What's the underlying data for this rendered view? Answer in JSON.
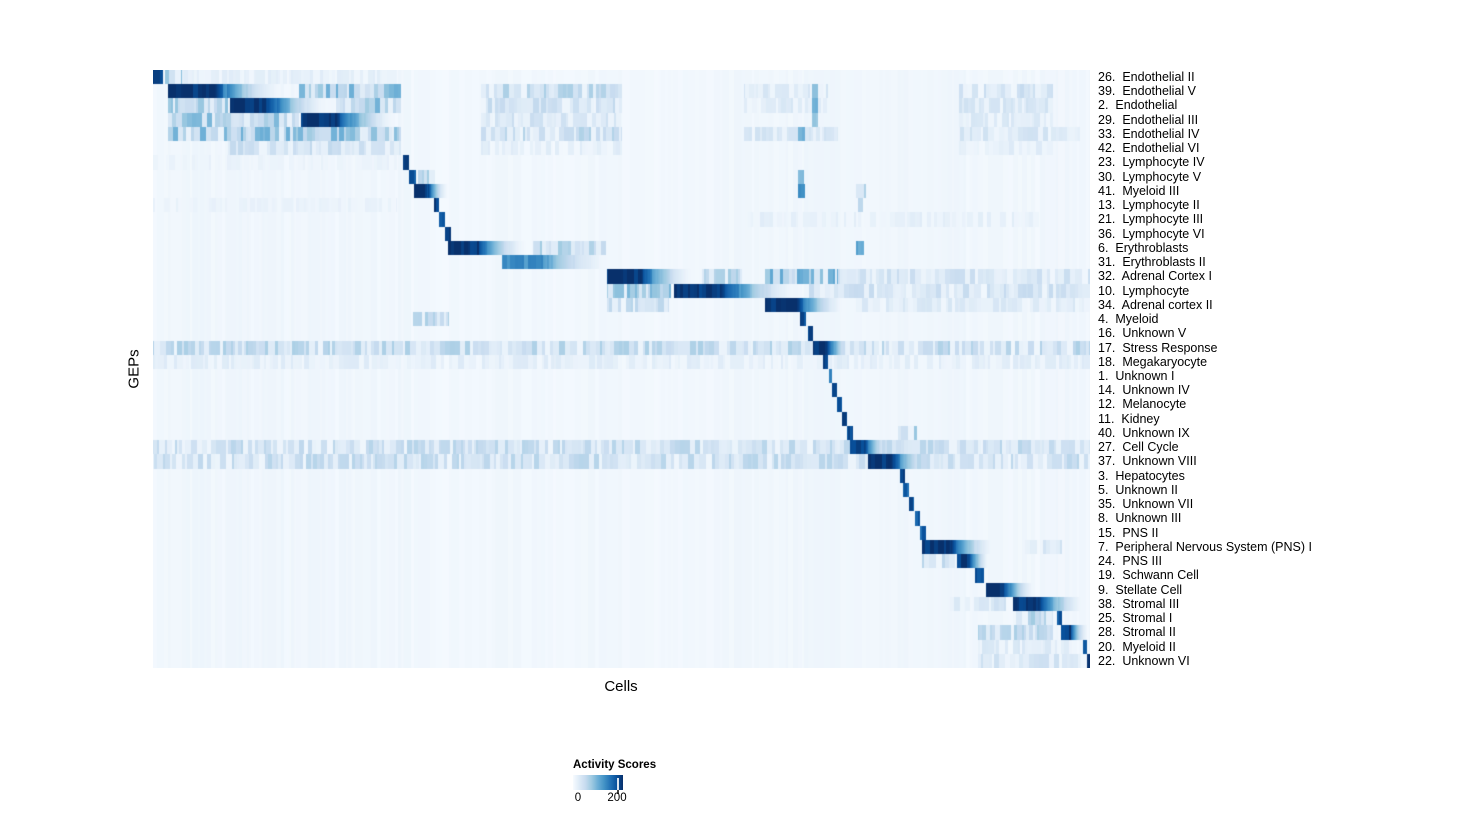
{
  "figure": {
    "xlabel": "Cells",
    "ylabel": "GEPs"
  },
  "colors": {
    "page_background": "#ffffff",
    "heatmap_low": "#f7fbff",
    "heatmap_high": "#08306b"
  },
  "chart_data": {
    "type": "heatmap",
    "title": "",
    "xlabel": "Cells",
    "ylabel": "GEPs",
    "x_axis_tick_labels": [],
    "colormap": "Blues",
    "colormap_stops": [
      [
        247,
        251,
        255
      ],
      [
        222,
        235,
        247
      ],
      [
        198,
        219,
        239
      ],
      [
        158,
        202,
        225
      ],
      [
        107,
        174,
        214
      ],
      [
        66,
        146,
        198
      ],
      [
        33,
        113,
        181
      ],
      [
        8,
        81,
        156
      ],
      [
        8,
        48,
        107
      ]
    ],
    "legend": {
      "title": "Activity Scores",
      "ticks": [
        {
          "value": 0,
          "label": "0",
          "pos": 0.1
        },
        {
          "value": 200,
          "label": "200",
          "pos": 0.88
        }
      ]
    },
    "rows": [
      "26.  Endothelial II",
      "39.  Endothelial V",
      "2.  Endothelial",
      "29.  Endothelial III",
      "33.  Endothelial IV",
      "42.  Endothelial VI",
      "23.  Lymphocyte IV",
      "30.  Lymphocyte V",
      "41.  Myeloid III",
      "13.  Lymphocyte II",
      "21.  Lymphocyte III",
      "36.  Lymphocyte VI",
      "6.  Erythroblasts",
      "31.  Erythroblasts II",
      "32.  Adrenal Cortex I",
      "10.  Lymphocyte",
      "34.  Adrenal cortex II",
      "4.  Myeloid",
      "16.  Unknown V",
      "17.  Stress Response",
      "18.  Megakaryocyte",
      "1.  Unknown I",
      "14.  Unknown IV",
      "12.  Melanocyte",
      "11.  Kidney",
      "40.  Unknown IX",
      "27.  Cell Cycle",
      "37.  Unknown VIII",
      "3.  Hepatocytes",
      "5.  Unknown II",
      "35.  Unknown VII",
      "8.  Unknown III",
      "15.  PNS II",
      "7.  Peripheral Nervous System (PNS) I",
      "24.  PNS III",
      "19.  Schwann Cell",
      "9.  Stellate Cell",
      "38.  Stromal III",
      "25.  Stromal I",
      "28.  Stromal II",
      "20.  Myeloid II",
      "22.  Unknown VI"
    ],
    "background_bands": [
      [
        0.015,
        0.264,
        0.03
      ],
      [
        0.35,
        0.5,
        0.02
      ],
      [
        0.505,
        0.56,
        0.02
      ],
      [
        0.63,
        0.87,
        0.03
      ],
      [
        0.917,
        1.0,
        0.03
      ]
    ],
    "blocks": [
      [
        0,
        0.0,
        0.01,
        0.95,
        "s"
      ],
      [
        0,
        0.012,
        0.03,
        0.3,
        "n"
      ],
      [
        0,
        0.03,
        0.26,
        0.07,
        "n"
      ],
      [
        1,
        0.015,
        0.15,
        1.0,
        "f"
      ],
      [
        1,
        0.155,
        0.264,
        0.3,
        "n"
      ],
      [
        1,
        0.35,
        0.5,
        0.2,
        "n"
      ],
      [
        1,
        0.63,
        0.72,
        0.12,
        "n"
      ],
      [
        1,
        0.703,
        0.709,
        0.45,
        "s"
      ],
      [
        1,
        0.86,
        0.96,
        0.15,
        "n"
      ],
      [
        2,
        0.015,
        0.08,
        0.25,
        "n"
      ],
      [
        2,
        0.082,
        0.195,
        1.0,
        "f"
      ],
      [
        2,
        0.195,
        0.264,
        0.3,
        "n"
      ],
      [
        2,
        0.35,
        0.5,
        0.16,
        "n"
      ],
      [
        2,
        0.63,
        0.72,
        0.1,
        "n"
      ],
      [
        2,
        0.703,
        0.709,
        0.5,
        "s"
      ],
      [
        2,
        0.86,
        0.96,
        0.12,
        "n"
      ],
      [
        3,
        0.015,
        0.155,
        0.28,
        "n"
      ],
      [
        3,
        0.157,
        0.268,
        1.0,
        "f"
      ],
      [
        3,
        0.35,
        0.5,
        0.14,
        "n"
      ],
      [
        3,
        0.703,
        0.709,
        0.4,
        "s"
      ],
      [
        3,
        0.86,
        0.96,
        0.1,
        "n"
      ],
      [
        4,
        0.015,
        0.264,
        0.3,
        "n"
      ],
      [
        4,
        0.35,
        0.5,
        0.2,
        "n"
      ],
      [
        4,
        0.63,
        0.73,
        0.12,
        "n"
      ],
      [
        4,
        0.688,
        0.695,
        0.5,
        "s"
      ],
      [
        4,
        0.86,
        0.99,
        0.12,
        "n"
      ],
      [
        5,
        0.08,
        0.264,
        0.16,
        "n"
      ],
      [
        5,
        0.35,
        0.5,
        0.08,
        "n"
      ],
      [
        5,
        0.86,
        0.96,
        0.08,
        "n"
      ],
      [
        6,
        0.0,
        0.26,
        0.05,
        "n"
      ],
      [
        6,
        0.2665,
        0.2725,
        0.9,
        "s"
      ],
      [
        7,
        0.2725,
        0.2805,
        0.85,
        "s"
      ],
      [
        7,
        0.282,
        0.3,
        0.25,
        "n"
      ],
      [
        7,
        0.688,
        0.694,
        0.45,
        "s"
      ],
      [
        8,
        0.2775,
        0.318,
        1.0,
        "f"
      ],
      [
        8,
        0.688,
        0.695,
        0.6,
        "s"
      ],
      [
        8,
        0.75,
        0.76,
        0.2,
        "n"
      ],
      [
        9,
        0.0,
        0.26,
        0.05,
        "n"
      ],
      [
        9,
        0.299,
        0.305,
        0.9,
        "s"
      ],
      [
        9,
        0.752,
        0.757,
        0.3,
        "s"
      ],
      [
        10,
        0.305,
        0.311,
        0.85,
        "s"
      ],
      [
        10,
        0.63,
        0.95,
        0.07,
        "n"
      ],
      [
        11,
        0.311,
        0.3175,
        0.9,
        "s"
      ],
      [
        12,
        0.314,
        0.405,
        1.0,
        "f"
      ],
      [
        12,
        0.405,
        0.483,
        0.22,
        "n"
      ],
      [
        12,
        0.75,
        0.758,
        0.55,
        "s"
      ],
      [
        13,
        0.372,
        0.5,
        0.62,
        "f"
      ],
      [
        14,
        0.484,
        0.585,
        1.0,
        "f"
      ],
      [
        14,
        0.585,
        0.628,
        0.22,
        "n"
      ],
      [
        14,
        0.653,
        0.73,
        0.32,
        "n"
      ],
      [
        14,
        0.73,
        1.0,
        0.14,
        "n"
      ],
      [
        15,
        0.484,
        0.552,
        0.28,
        "n"
      ],
      [
        15,
        0.555,
        0.7,
        1.0,
        "f"
      ],
      [
        15,
        0.7,
        1.0,
        0.15,
        "n"
      ],
      [
        16,
        0.484,
        0.55,
        0.18,
        "n"
      ],
      [
        16,
        0.653,
        0.745,
        1.0,
        "f"
      ],
      [
        16,
        0.75,
        1.0,
        0.1,
        "n"
      ],
      [
        17,
        0.277,
        0.315,
        0.2,
        "n"
      ],
      [
        17,
        0.69,
        0.6965,
        0.9,
        "s"
      ],
      [
        18,
        0.698,
        0.7035,
        0.9,
        "s"
      ],
      [
        19,
        0.0,
        1.0,
        0.2,
        "n"
      ],
      [
        19,
        0.7035,
        0.748,
        1.0,
        "f"
      ],
      [
        20,
        0.0,
        1.0,
        0.08,
        "n"
      ],
      [
        20,
        0.714,
        0.7195,
        0.9,
        "s"
      ],
      [
        21,
        0.7205,
        0.7245,
        0.7,
        "s"
      ],
      [
        22,
        0.7245,
        0.7295,
        0.9,
        "s"
      ],
      [
        23,
        0.7295,
        0.7345,
        0.9,
        "s"
      ],
      [
        24,
        0.7345,
        0.7405,
        0.9,
        "s"
      ],
      [
        25,
        0.7405,
        0.7465,
        0.9,
        "s"
      ],
      [
        25,
        0.795,
        0.815,
        0.25,
        "n"
      ],
      [
        26,
        0.0,
        1.0,
        0.18,
        "n"
      ],
      [
        26,
        0.7435,
        0.79,
        0.95,
        "f"
      ],
      [
        27,
        0.0,
        1.0,
        0.18,
        "n"
      ],
      [
        27,
        0.763,
        0.835,
        1.0,
        "f"
      ],
      [
        28,
        0.7965,
        0.8025,
        0.9,
        "s"
      ],
      [
        29,
        0.8,
        0.806,
        0.8,
        "s"
      ],
      [
        30,
        0.806,
        0.812,
        0.85,
        "s"
      ],
      [
        31,
        0.8125,
        0.8185,
        0.85,
        "s"
      ],
      [
        32,
        0.8185,
        0.824,
        0.8,
        "s"
      ],
      [
        33,
        0.82,
        0.905,
        1.0,
        "f"
      ],
      [
        33,
        0.93,
        0.97,
        0.12,
        "n"
      ],
      [
        34,
        0.82,
        0.855,
        0.18,
        "n"
      ],
      [
        34,
        0.858,
        0.895,
        0.95,
        "f"
      ],
      [
        35,
        0.877,
        0.886,
        0.9,
        "s"
      ],
      [
        36,
        0.888,
        0.945,
        1.0,
        "f"
      ],
      [
        37,
        0.85,
        0.91,
        0.13,
        "n"
      ],
      [
        37,
        0.917,
        1.0,
        1.0,
        "f"
      ],
      [
        38,
        0.92,
        0.96,
        0.22,
        "n"
      ],
      [
        38,
        0.9645,
        0.9695,
        0.85,
        "s"
      ],
      [
        39,
        0.88,
        0.96,
        0.2,
        "n"
      ],
      [
        39,
        0.968,
        1.0,
        0.95,
        "f"
      ],
      [
        40,
        0.88,
        0.98,
        0.1,
        "n"
      ],
      [
        40,
        0.9925,
        0.996,
        0.8,
        "s"
      ],
      [
        41,
        0.88,
        0.99,
        0.13,
        "n"
      ],
      [
        41,
        0.996,
        1.0,
        1.0,
        "s"
      ]
    ]
  }
}
